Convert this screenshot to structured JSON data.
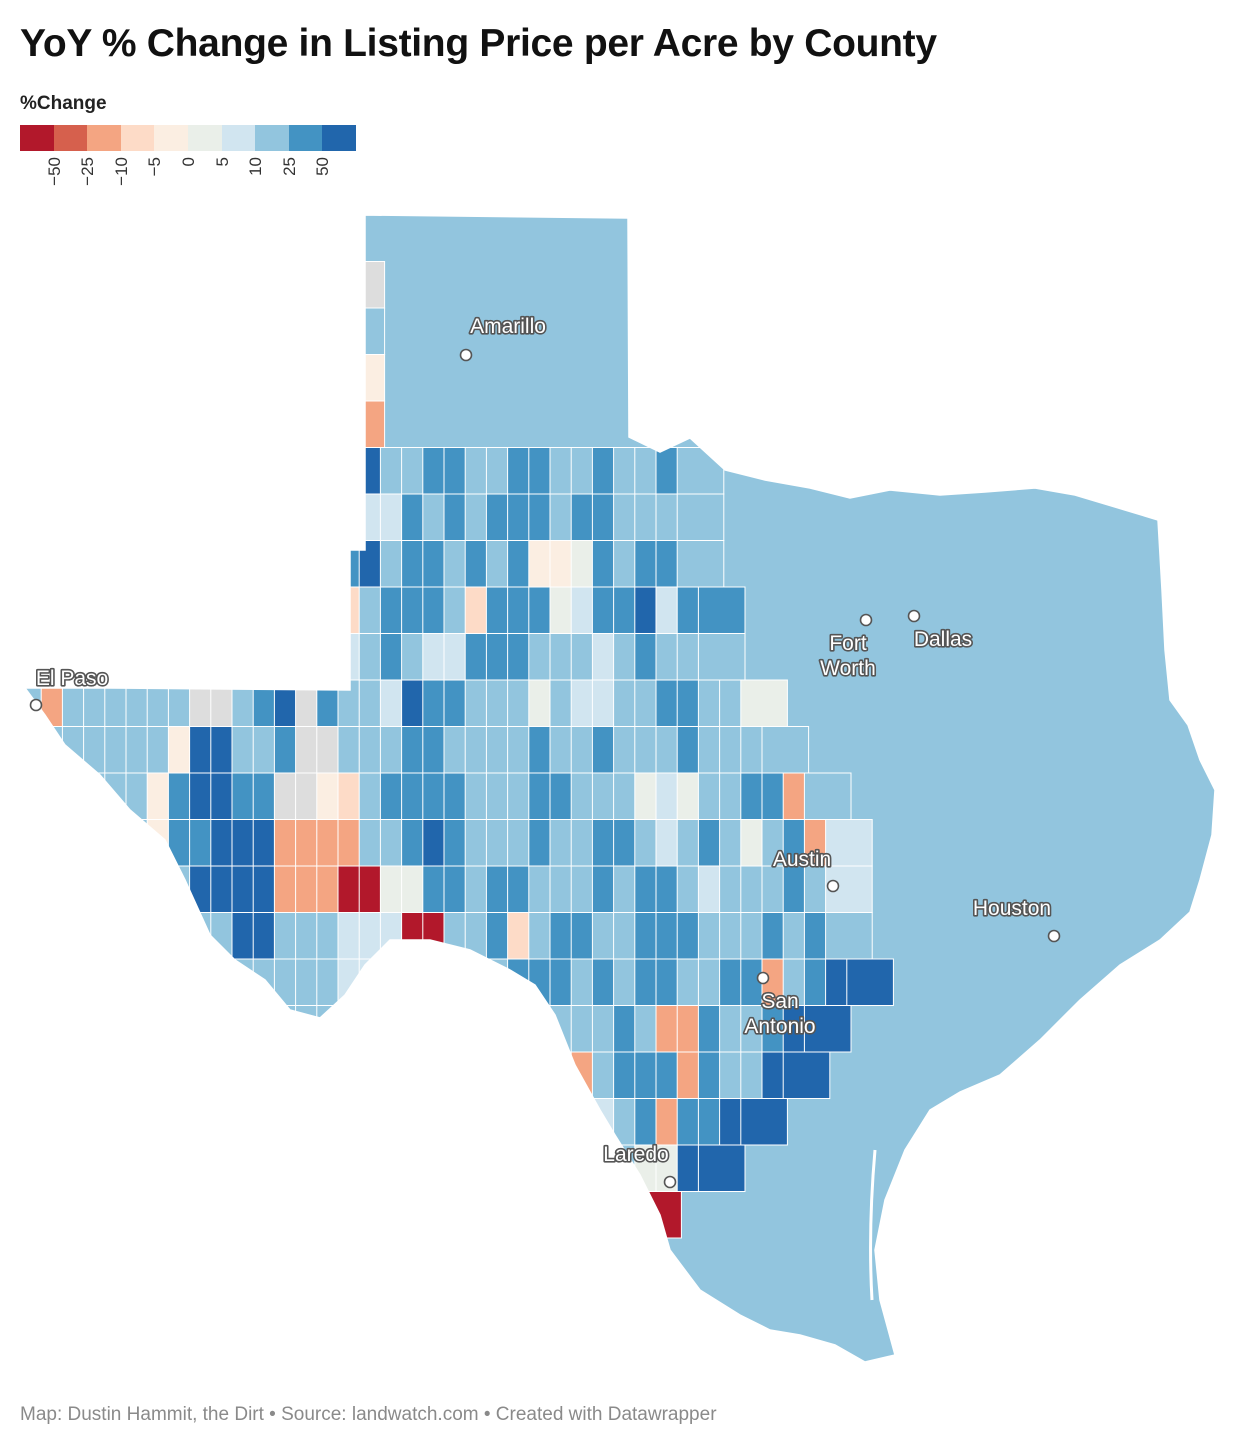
{
  "title": "YoY % Change in Listing Price per Acre by County",
  "legend": {
    "title": "%Change",
    "colors": [
      "#b2182b",
      "#d6604d",
      "#f4a582",
      "#fddbc7",
      "#fbeee2",
      "#eaefe9",
      "#d1e5f0",
      "#92c5de",
      "#4393c3",
      "#2166ac"
    ],
    "ticks": [
      "−50",
      "−25",
      "−10",
      "−5",
      "0",
      "5",
      "10",
      "25",
      "50"
    ],
    "no_data_color": "#dddddd"
  },
  "cities": [
    {
      "name": "Amarillo",
      "label_line1": "Amarillo",
      "label_line2": ""
    },
    {
      "name": "El Paso",
      "label_line1": "El Paso",
      "label_line2": ""
    },
    {
      "name": "Fort Worth",
      "label_line1": "Fort",
      "label_line2": "Worth"
    },
    {
      "name": "Dallas",
      "label_line1": "Dallas",
      "label_line2": ""
    },
    {
      "name": "Austin",
      "label_line1": "Austin",
      "label_line2": ""
    },
    {
      "name": "Houston",
      "label_line1": "Houston",
      "label_line2": ""
    },
    {
      "name": "San Antonio",
      "label_line1": "San",
      "label_line2": "Antonio"
    },
    {
      "name": "Laredo",
      "label_line1": "Laredo",
      "label_line2": ""
    }
  ],
  "footer": "Map: Dustin Hammit, the Dirt • Source: landwatch.com • Created with Datawrapper"
}
